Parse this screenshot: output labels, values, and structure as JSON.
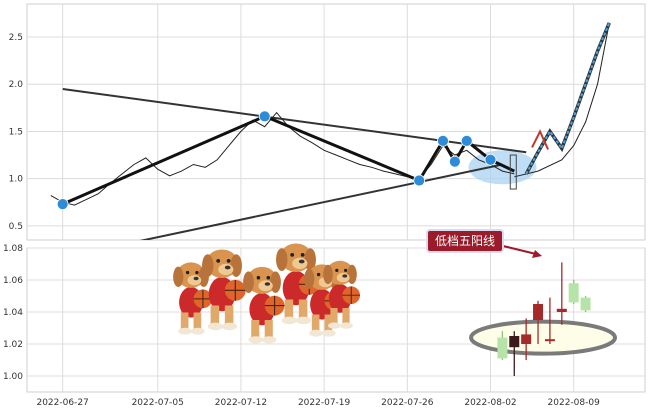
{
  "chart_data": [
    {
      "type": "line",
      "panel": "price",
      "ylim": [
        0.35,
        2.85
      ],
      "yticks": [
        0.5,
        1.0,
        1.5,
        2.0,
        2.5
      ],
      "ytick_labels": [
        "0.5",
        "1.0",
        "1.5",
        "2.0",
        "2.5"
      ],
      "grid": true,
      "series": [
        {
          "role": "price-line",
          "points": [
            [
              "2022-06-26",
              0.82
            ],
            [
              "2022-06-27",
              0.75
            ],
            [
              "2022-06-28",
              0.72
            ],
            [
              "2022-06-29",
              0.78
            ],
            [
              "2022-06-30",
              0.84
            ],
            [
              "2022-07-01",
              0.95
            ],
            [
              "2022-07-02",
              1.05
            ],
            [
              "2022-07-03",
              1.15
            ],
            [
              "2022-07-04",
              1.22
            ],
            [
              "2022-07-05",
              1.1
            ],
            [
              "2022-07-06",
              1.03
            ],
            [
              "2022-07-07",
              1.08
            ],
            [
              "2022-07-08",
              1.15
            ],
            [
              "2022-07-09",
              1.12
            ],
            [
              "2022-07-10",
              1.2
            ],
            [
              "2022-07-11",
              1.35
            ],
            [
              "2022-07-12",
              1.5
            ],
            [
              "2022-07-13",
              1.62
            ],
            [
              "2022-07-14",
              1.55
            ],
            [
              "2022-07-15",
              1.7
            ],
            [
              "2022-07-16",
              1.55
            ],
            [
              "2022-07-17",
              1.45
            ],
            [
              "2022-07-18",
              1.38
            ],
            [
              "2022-07-19",
              1.3
            ],
            [
              "2022-07-20",
              1.25
            ],
            [
              "2022-07-21",
              1.2
            ],
            [
              "2022-07-22",
              1.15
            ],
            [
              "2022-07-23",
              1.12
            ],
            [
              "2022-07-24",
              1.08
            ],
            [
              "2022-07-25",
              1.05
            ],
            [
              "2022-07-26",
              1.02
            ],
            [
              "2022-07-27",
              1.0
            ],
            [
              "2022-07-28",
              1.15
            ],
            [
              "2022-07-29",
              1.35
            ],
            [
              "2022-07-30",
              1.25
            ],
            [
              "2022-07-31",
              1.3
            ],
            [
              "2022-08-01",
              1.2
            ],
            [
              "2022-08-02",
              1.15
            ],
            [
              "2022-08-03",
              1.08
            ],
            [
              "2022-08-04",
              1.05
            ]
          ]
        },
        {
          "role": "zigzag",
          "points": [
            [
              "2022-06-27",
              0.73
            ],
            [
              "2022-07-14",
              1.66
            ],
            [
              "2022-07-27",
              0.98
            ],
            [
              "2022-07-29",
              1.4
            ],
            [
              "2022-07-30",
              1.18
            ],
            [
              "2022-07-31",
              1.4
            ],
            [
              "2022-08-02",
              1.2
            ],
            [
              "2022-08-04",
              1.08
            ]
          ]
        },
        {
          "role": "upper-trendline",
          "points": [
            [
              "2022-06-27",
              1.95
            ],
            [
              "2022-08-05",
              1.28
            ]
          ]
        },
        {
          "role": "lower-trendline",
          "points": [
            [
              "2022-07-02",
              0.3
            ],
            [
              "2022-08-03",
              1.15
            ]
          ]
        },
        {
          "role": "projection",
          "points": [
            [
              "2022-08-05",
              1.05
            ],
            [
              "2022-08-06",
              1.28
            ],
            [
              "2022-08-07",
              1.5
            ],
            [
              "2022-08-08",
              1.32
            ],
            [
              "2022-08-09",
              1.65
            ],
            [
              "2022-08-10",
              2.0
            ],
            [
              "2022-08-11",
              2.35
            ],
            [
              "2022-08-12",
              2.65
            ]
          ]
        },
        {
          "role": "projection-curve",
          "points": [
            [
              "2022-08-04",
              1.02
            ],
            [
              "2022-08-06",
              1.08
            ],
            [
              "2022-08-08",
              1.2
            ],
            [
              "2022-08-09",
              1.35
            ],
            [
              "2022-08-10",
              1.6
            ],
            [
              "2022-08-11",
              2.0
            ],
            [
              "2022-08-12",
              2.65
            ]
          ]
        }
      ],
      "markers": [
        [
          "2022-06-27",
          0.73
        ],
        [
          "2022-07-14",
          1.66
        ],
        [
          "2022-07-27",
          0.98
        ],
        [
          "2022-07-29",
          1.4
        ],
        [
          "2022-07-30",
          1.18
        ],
        [
          "2022-07-31",
          1.4
        ],
        [
          "2022-08-02",
          1.2
        ]
      ]
    },
    {
      "type": "candlestick",
      "panel": "candles",
      "ylim": [
        0.99,
        1.08
      ],
      "yticks": [
        1.0,
        1.02,
        1.04,
        1.06,
        1.08
      ],
      "ytick_labels": [
        "1.00",
        "1.02",
        "1.04",
        "1.06",
        "1.08"
      ],
      "grid": true,
      "candles": [
        {
          "date": "2022-08-03",
          "open": 1.024,
          "high": 1.028,
          "low": 1.01,
          "close": 1.011,
          "color": "#b7e3a8"
        },
        {
          "date": "2022-08-04",
          "open": 1.025,
          "high": 1.028,
          "low": 1.0,
          "close": 1.018,
          "color": "#3a1a1a"
        },
        {
          "date": "2022-08-05",
          "open": 1.02,
          "high": 1.036,
          "low": 1.01,
          "close": 1.026,
          "color": "#a52a2a"
        },
        {
          "date": "2022-08-06",
          "open": 1.035,
          "high": 1.047,
          "low": 1.02,
          "close": 1.045,
          "color": "#a52a2a"
        },
        {
          "date": "2022-08-07",
          "open": 1.022,
          "high": 1.049,
          "low": 1.02,
          "close": 1.023,
          "color": "#a52a2a"
        },
        {
          "date": "2022-08-08",
          "open": 1.04,
          "high": 1.071,
          "low": 1.032,
          "close": 1.042,
          "color": "#a52a2a"
        },
        {
          "date": "2022-08-09",
          "open": 1.058,
          "high": 1.06,
          "low": 1.045,
          "close": 1.046,
          "color": "#b7e3a8"
        },
        {
          "date": "2022-08-10",
          "open": 1.049,
          "high": 1.05,
          "low": 1.04,
          "close": 1.041,
          "color": "#b7e3a8"
        }
      ]
    }
  ],
  "x_ticks": [
    "2022-06-27",
    "2022-07-05",
    "2022-07-12",
    "2022-07-19",
    "2022-07-26",
    "2022-08-02",
    "2022-08-09"
  ],
  "x_range": [
    "2022-06-24",
    "2022-08-15"
  ],
  "annotation": {
    "label": "低档五阳线"
  },
  "colors": {
    "grid": "#dcdcdc",
    "price": "#222222",
    "marker": "#2e8bd8",
    "projection": "#4aa3e0",
    "callout_bg": "#9b1b2a"
  }
}
